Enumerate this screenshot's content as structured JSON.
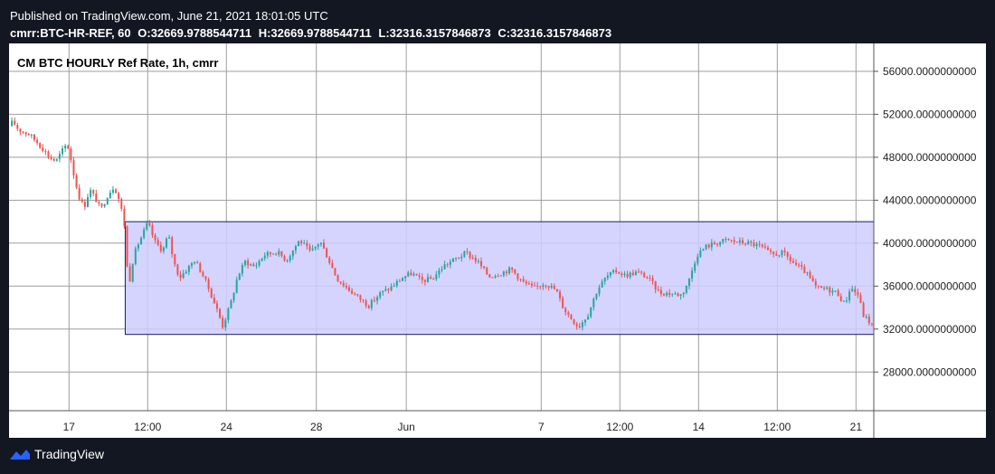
{
  "header": {
    "published_line": "Published on TradingView.com, June 21, 2021 18:01:05 UTC",
    "symbol": "cmrr:BTC-HR-REF, 60",
    "open": "O:32669.9788544711",
    "high": "H:32669.9788544711",
    "low": "L:32316.3157846873",
    "close": "C:32316.3157846873"
  },
  "chart_title": "CM BTC HOURLY Ref Rate, 1h, cmrr",
  "footer": {
    "brand": "TradingView"
  },
  "colors": {
    "up": "#26a69a",
    "down": "#ef5350",
    "box_fill": "#ccccff",
    "box_stroke": "#1a1a66",
    "grid": "#9e9e9e",
    "frame": "#131722"
  },
  "chart_data": {
    "type": "candlestick",
    "title": "CM BTC HOURLY Ref Rate, 1h, cmrr",
    "y_ticks": [
      "56000.0000000000",
      "52000.0000000000",
      "48000.0000000000",
      "44000.0000000000",
      "40000.0000000000",
      "36000.0000000000",
      "32000.0000000000",
      "28000.0000000000"
    ],
    "y_tick_values": [
      56000,
      52000,
      48000,
      44000,
      40000,
      36000,
      32000,
      28000
    ],
    "x_ticks": [
      "17",
      "12:00",
      "24",
      "28",
      "Jun",
      "7",
      "12:00",
      "14",
      "12:00",
      "21"
    ],
    "x_tick_values": [
      "2021-05-17",
      "2021-05-20T12:00",
      "2021-05-24",
      "2021-05-28",
      "2021-06-01",
      "2021-06-07",
      "2021-06-10T12:00",
      "2021-06-14",
      "2021-06-17T12:00",
      "2021-06-21"
    ],
    "x_range": [
      "2021-05-14T08:00",
      "2021-06-21T19:00"
    ],
    "ylim": [
      24400,
      58600
    ],
    "grid": true,
    "path": [
      [
        "2021-05-14T08:00",
        50900
      ],
      [
        "2021-05-14T12:00",
        51300
      ],
      [
        "2021-05-14T18:00",
        50600
      ],
      [
        "2021-05-15T06:00",
        50100
      ],
      [
        "2021-05-15T14:00",
        49400
      ],
      [
        "2021-05-15T20:00",
        48800
      ],
      [
        "2021-05-16T02:00",
        48100
      ],
      [
        "2021-05-16T10:00",
        47600
      ],
      [
        "2021-05-16T16:00",
        48500
      ],
      [
        "2021-05-16T22:00",
        49300
      ],
      [
        "2021-05-17T02:00",
        47800
      ],
      [
        "2021-05-17T06:00",
        46000
      ],
      [
        "2021-05-17T10:00",
        44500
      ],
      [
        "2021-05-17T16:00",
        43300
      ],
      [
        "2021-05-17T22:00",
        45000
      ],
      [
        "2021-05-18T04:00",
        44200
      ],
      [
        "2021-05-18T10:00",
        43100
      ],
      [
        "2021-05-18T18:00",
        44600
      ],
      [
        "2021-05-19T00:00",
        45300
      ],
      [
        "2021-05-19T04:00",
        44500
      ],
      [
        "2021-05-19T08:00",
        43100
      ],
      [
        "2021-05-19T12:00",
        41200
      ],
      [
        "2021-05-19T14:00",
        37800
      ],
      [
        "2021-05-19T16:00",
        36100
      ],
      [
        "2021-05-19T20:00",
        38300
      ],
      [
        "2021-05-20T00:00",
        39600
      ],
      [
        "2021-05-20T06:00",
        40700
      ],
      [
        "2021-05-20T12:00",
        41900
      ],
      [
        "2021-05-20T20:00",
        40100
      ],
      [
        "2021-05-21T04:00",
        39300
      ],
      [
        "2021-05-21T10:00",
        40800
      ],
      [
        "2021-05-21T16:00",
        38200
      ],
      [
        "2021-05-21T22:00",
        36800
      ],
      [
        "2021-05-22T06:00",
        37600
      ],
      [
        "2021-05-22T14:00",
        38400
      ],
      [
        "2021-05-22T22:00",
        37200
      ],
      [
        "2021-05-23T06:00",
        35600
      ],
      [
        "2021-05-23T14:00",
        33800
      ],
      [
        "2021-05-23T20:00",
        32300
      ],
      [
        "2021-05-24T04:00",
        34200
      ],
      [
        "2021-05-24T12:00",
        36900
      ],
      [
        "2021-05-24T20:00",
        38300
      ],
      [
        "2021-05-25T06:00",
        37800
      ],
      [
        "2021-05-25T16:00",
        38900
      ],
      [
        "2021-05-26T06:00",
        39200
      ],
      [
        "2021-05-26T16:00",
        38400
      ],
      [
        "2021-05-27T06:00",
        40300
      ],
      [
        "2021-05-27T18:00",
        39100
      ],
      [
        "2021-05-28T04:00",
        40200
      ],
      [
        "2021-05-28T14:00",
        38300
      ],
      [
        "2021-05-28T22:00",
        36700
      ],
      [
        "2021-05-29T08:00",
        35900
      ],
      [
        "2021-05-29T20:00",
        35000
      ],
      [
        "2021-05-30T08:00",
        34200
      ],
      [
        "2021-05-30T20:00",
        35300
      ],
      [
        "2021-05-31T08:00",
        35900
      ],
      [
        "2021-05-31T20:00",
        36800
      ],
      [
        "2021-06-01T06:00",
        37200
      ],
      [
        "2021-06-01T16:00",
        36500
      ],
      [
        "2021-06-02T04:00",
        36700
      ],
      [
        "2021-06-02T16:00",
        37900
      ],
      [
        "2021-06-03T04:00",
        38500
      ],
      [
        "2021-06-03T16:00",
        39100
      ],
      [
        "2021-06-04T04:00",
        38300
      ],
      [
        "2021-06-04T16:00",
        36900
      ],
      [
        "2021-06-05T04:00",
        37200
      ],
      [
        "2021-06-05T16:00",
        37600
      ],
      [
        "2021-06-06T04:00",
        36400
      ],
      [
        "2021-06-06T16:00",
        35800
      ],
      [
        "2021-06-07T04:00",
        36300
      ],
      [
        "2021-06-07T16:00",
        35600
      ],
      [
        "2021-06-08T00:00",
        33900
      ],
      [
        "2021-06-08T08:00",
        33000
      ],
      [
        "2021-06-08T16:00",
        32200
      ],
      [
        "2021-06-09T02:00",
        33400
      ],
      [
        "2021-06-09T12:00",
        35700
      ],
      [
        "2021-06-09T22:00",
        36900
      ],
      [
        "2021-06-10T08:00",
        37400
      ],
      [
        "2021-06-10T18:00",
        37000
      ],
      [
        "2021-06-11T06:00",
        37300
      ],
      [
        "2021-06-11T18:00",
        36800
      ],
      [
        "2021-06-12T06:00",
        35400
      ],
      [
        "2021-06-12T18:00",
        35300
      ],
      [
        "2021-06-13T06:00",
        35200
      ],
      [
        "2021-06-13T14:00",
        36600
      ],
      [
        "2021-06-13T22:00",
        38900
      ],
      [
        "2021-06-14T08:00",
        39700
      ],
      [
        "2021-06-14T18:00",
        40000
      ],
      [
        "2021-06-15T06:00",
        40300
      ],
      [
        "2021-06-15T18:00",
        40100
      ],
      [
        "2021-06-16T06:00",
        40000
      ],
      [
        "2021-06-16T18:00",
        39700
      ],
      [
        "2021-06-17T06:00",
        38900
      ],
      [
        "2021-06-17T18:00",
        39100
      ],
      [
        "2021-06-18T06:00",
        38100
      ],
      [
        "2021-06-18T18:00",
        37300
      ],
      [
        "2021-06-19T06:00",
        35800
      ],
      [
        "2021-06-19T18:00",
        35700
      ],
      [
        "2021-06-20T04:00",
        35400
      ],
      [
        "2021-06-20T12:00",
        34300
      ],
      [
        "2021-06-20T18:00",
        35900
      ],
      [
        "2021-06-21T02:00",
        35200
      ],
      [
        "2021-06-21T08:00",
        33300
      ],
      [
        "2021-06-21T14:00",
        32700
      ],
      [
        "2021-06-21T18:00",
        32316
      ]
    ],
    "annotations": [
      {
        "type": "rectangle",
        "x_start": "2021-05-19T12:00",
        "x_end": "2021-06-21T19:00",
        "y_low": 31500,
        "y_high": 42000
      }
    ]
  }
}
